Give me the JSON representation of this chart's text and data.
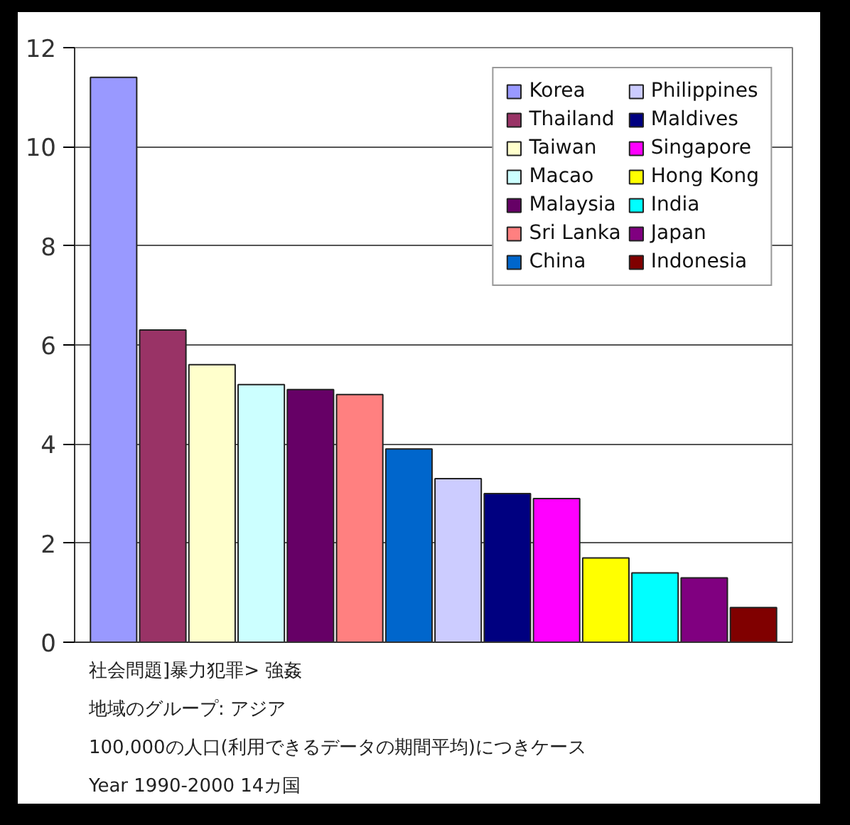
{
  "chart_data": {
    "type": "bar",
    "categories": [
      null
    ],
    "series": [
      {
        "name": "Korea",
        "color": "#9999ff",
        "values": [
          11.4
        ]
      },
      {
        "name": "Thailand",
        "color": "#993366",
        "values": [
          6.3
        ]
      },
      {
        "name": "Taiwan",
        "color": "#ffffcc",
        "values": [
          5.6
        ]
      },
      {
        "name": "Macao",
        "color": "#ccffff",
        "values": [
          5.2
        ]
      },
      {
        "name": "Malaysia",
        "color": "#660066",
        "values": [
          5.1
        ]
      },
      {
        "name": "Sri Lanka",
        "color": "#ff8080",
        "values": [
          5.0
        ]
      },
      {
        "name": "China",
        "color": "#0066cc",
        "values": [
          3.9
        ]
      },
      {
        "name": "Philippines",
        "color": "#ccccff",
        "values": [
          3.3
        ]
      },
      {
        "name": "Maldives",
        "color": "#000080",
        "values": [
          3.0
        ]
      },
      {
        "name": "Singapore",
        "color": "#ff00ff",
        "values": [
          2.9
        ]
      },
      {
        "name": "Hong Kong",
        "color": "#ffff00",
        "values": [
          1.7
        ]
      },
      {
        "name": "India",
        "color": "#00ffff",
        "values": [
          1.4
        ]
      },
      {
        "name": "Japan",
        "color": "#800080",
        "values": [
          1.3
        ]
      },
      {
        "name": "Indonesia",
        "color": "#800000",
        "values": [
          0.7
        ]
      }
    ],
    "ylim": [
      0,
      12
    ],
    "yticks": [
      0,
      2,
      4,
      6,
      8,
      10,
      12
    ],
    "grid": "y",
    "legend": "top right",
    "annotations": [
      "社会問題]暴力犯罪> 強姦",
      "地域のグループ: アジア",
      "100,000の人口(利用できるデータの期間平均)につきケース",
      "Year 1990-2000 14カ国"
    ]
  }
}
